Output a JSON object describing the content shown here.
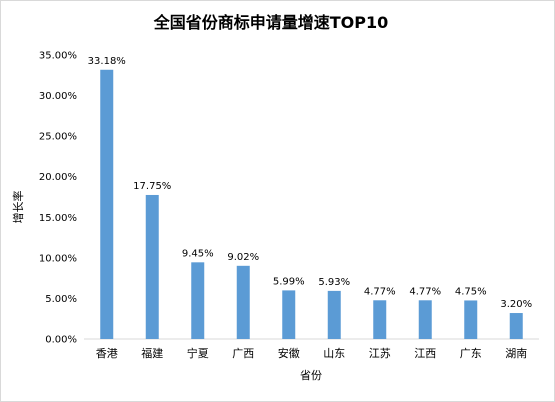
{
  "chart_data": {
    "type": "bar",
    "title": "全国省份商标申请量增速TOP10",
    "xlabel": "省份",
    "ylabel": "增长率",
    "categories": [
      "香港",
      "福建",
      "宁夏",
      "广西",
      "安徽",
      "山东",
      "江苏",
      "江西",
      "广东",
      "湖南"
    ],
    "series": [
      {
        "values": [
          33.18,
          17.75,
          9.45,
          9.02,
          5.99,
          5.93,
          4.77,
          4.77,
          4.75,
          3.2
        ]
      }
    ],
    "data_labels": [
      "33.18%",
      "17.75%",
      "9.45%",
      "9.02%",
      "5.99%",
      "5.93%",
      "4.77%",
      "4.77%",
      "4.75%",
      "3.20%"
    ],
    "ylim": [
      0,
      35
    ],
    "yticks": [
      "0.00%",
      "5.00%",
      "10.00%",
      "15.00%",
      "20.00%",
      "25.00%",
      "30.00%",
      "35.00%"
    ],
    "grid": false,
    "legend": "none",
    "bar_color": "#5b9bd5"
  }
}
